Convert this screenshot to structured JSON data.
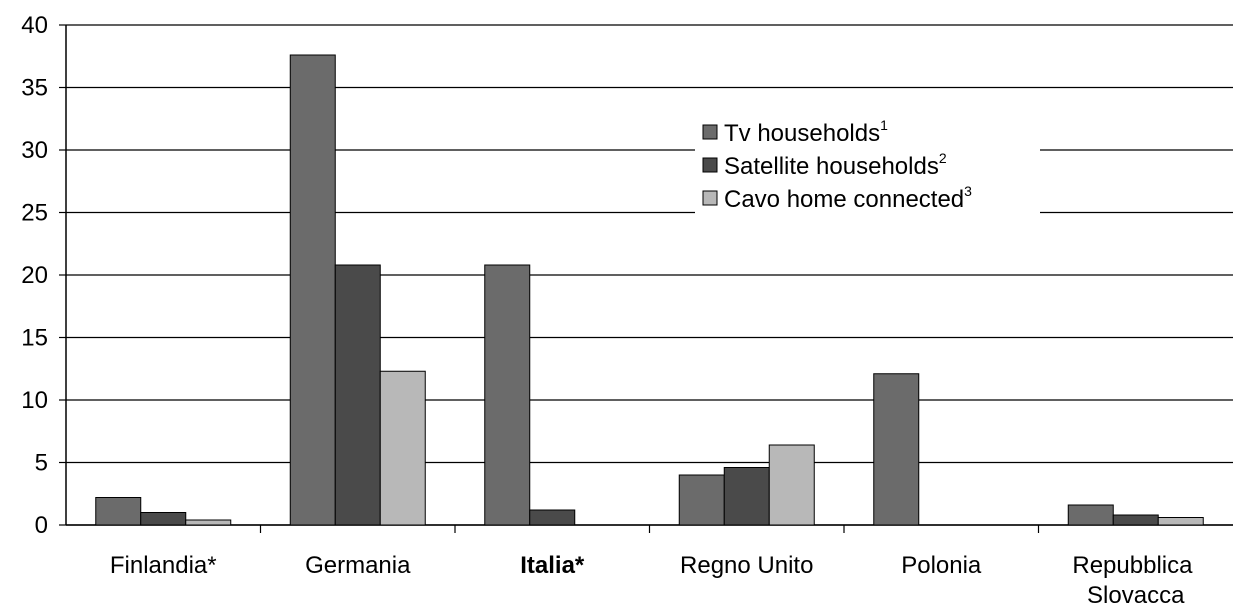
{
  "chart_data": {
    "type": "bar",
    "categories": [
      "Finlandia*",
      "Germania",
      "Italia*",
      "Regno Unito",
      "Polonia",
      "Repubblica Slovacca"
    ],
    "series": [
      {
        "name": "Tv households",
        "footnote": "1",
        "color": "#6b6b6b",
        "values": [
          2.2,
          37.6,
          20.8,
          4.0,
          12.1,
          1.6
        ]
      },
      {
        "name": "Satellite households",
        "footnote": "2",
        "color": "#4a4a4a",
        "values": [
          1.0,
          20.8,
          1.2,
          4.6,
          null,
          0.8
        ]
      },
      {
        "name": "Cavo home connected",
        "footnote": "3",
        "color": "#b8b8b8",
        "values": [
          0.4,
          12.3,
          null,
          6.4,
          null,
          0.6
        ]
      }
    ],
    "ylim": [
      0,
      40
    ],
    "yticks": [
      0,
      5,
      10,
      15,
      20,
      25,
      30,
      35,
      40
    ],
    "grid": true
  }
}
